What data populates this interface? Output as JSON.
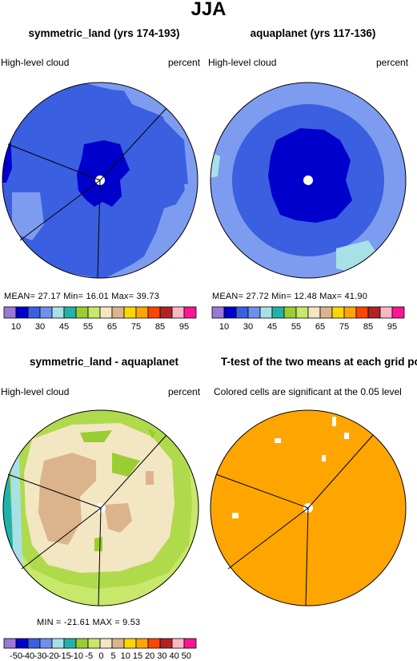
{
  "suptitle": "JJA",
  "palette_cloud": [
    "#9a79d6",
    "#0000cd",
    "#3a5fe0",
    "#6f8ff0",
    "#a8e0e8",
    "#20b2aa",
    "#9acd32",
    "#c7e86a",
    "#f3e6c3",
    "#dcb48c",
    "#ffd700",
    "#ffa500",
    "#ff4500",
    "#b22222",
    "#ffb6c1",
    "#ff1493"
  ],
  "palette_diff": [
    "#9a79d6",
    "#0000cd",
    "#3a5fe0",
    "#6f8ff0",
    "#a8e0e8",
    "#20b2aa",
    "#9acd32",
    "#c7e86a",
    "#f3e6c3",
    "#dcb48c",
    "#ffd700",
    "#ffa500",
    "#ff4500",
    "#b22222",
    "#ffb6c1",
    "#ff1493"
  ],
  "panels": [
    {
      "title": "symmetric_land (yrs 174-193)",
      "left_label": "High-level cloud",
      "right_label": "percent",
      "stats": "MEAN=   27.17   Min=   16.01   Max=   39.73"
    },
    {
      "title": "aquaplanet (yrs 117-136)",
      "left_label": "High-level cloud",
      "right_label": "percent",
      "stats": "MEAN=   27.72   Min=   12.48   Max=   41.90"
    },
    {
      "title": "symmetric_land - aquaplanet",
      "left_label": "High-level cloud",
      "right_label": "percent",
      "stats": "MIN =  -21.61   MAX =     9.53"
    },
    {
      "title": "T-test of the two means at each grid point",
      "left_label": "Colored cells are significant at the 0.05 level",
      "right_label": "",
      "stats": ""
    }
  ],
  "colorbar_top": {
    "ticks": [
      "10",
      "30",
      "45",
      "55",
      "65",
      "75",
      "85",
      "95"
    ]
  },
  "colorbar_bottom": {
    "ticks": [
      "-50",
      "-40",
      "-30",
      "-20",
      "-15",
      "-10",
      "-5",
      "0",
      "5",
      "10",
      "15",
      "20",
      "30",
      "40",
      "50"
    ]
  },
  "chart_data": [
    {
      "type": "heatmap",
      "title": "symmetric_land (yrs 174-193)",
      "variable": "High-level cloud",
      "units": "percent",
      "mean": 27.17,
      "min": 16.01,
      "max": 39.73,
      "levels": [
        10,
        15,
        20,
        25,
        30,
        35,
        40,
        45,
        50,
        55,
        60,
        65,
        70,
        75,
        80,
        85,
        90,
        95
      ]
    },
    {
      "type": "heatmap",
      "title": "aquaplanet (yrs 117-136)",
      "variable": "High-level cloud",
      "units": "percent",
      "mean": 27.72,
      "min": 12.48,
      "max": 41.9,
      "levels": [
        10,
        15,
        20,
        25,
        30,
        35,
        40,
        45,
        50,
        55,
        60,
        65,
        70,
        75,
        80,
        85,
        90,
        95
      ]
    },
    {
      "type": "heatmap",
      "title": "symmetric_land - aquaplanet",
      "variable": "High-level cloud",
      "units": "percent",
      "min": -21.61,
      "max": 9.53,
      "levels": [
        -50,
        -40,
        -30,
        -20,
        -15,
        -10,
        -5,
        0,
        5,
        10,
        15,
        20,
        30,
        40,
        50
      ]
    },
    {
      "type": "heatmap",
      "title": "T-test of the two means at each grid point",
      "note": "Colored cells are significant at the 0.05 level"
    }
  ]
}
